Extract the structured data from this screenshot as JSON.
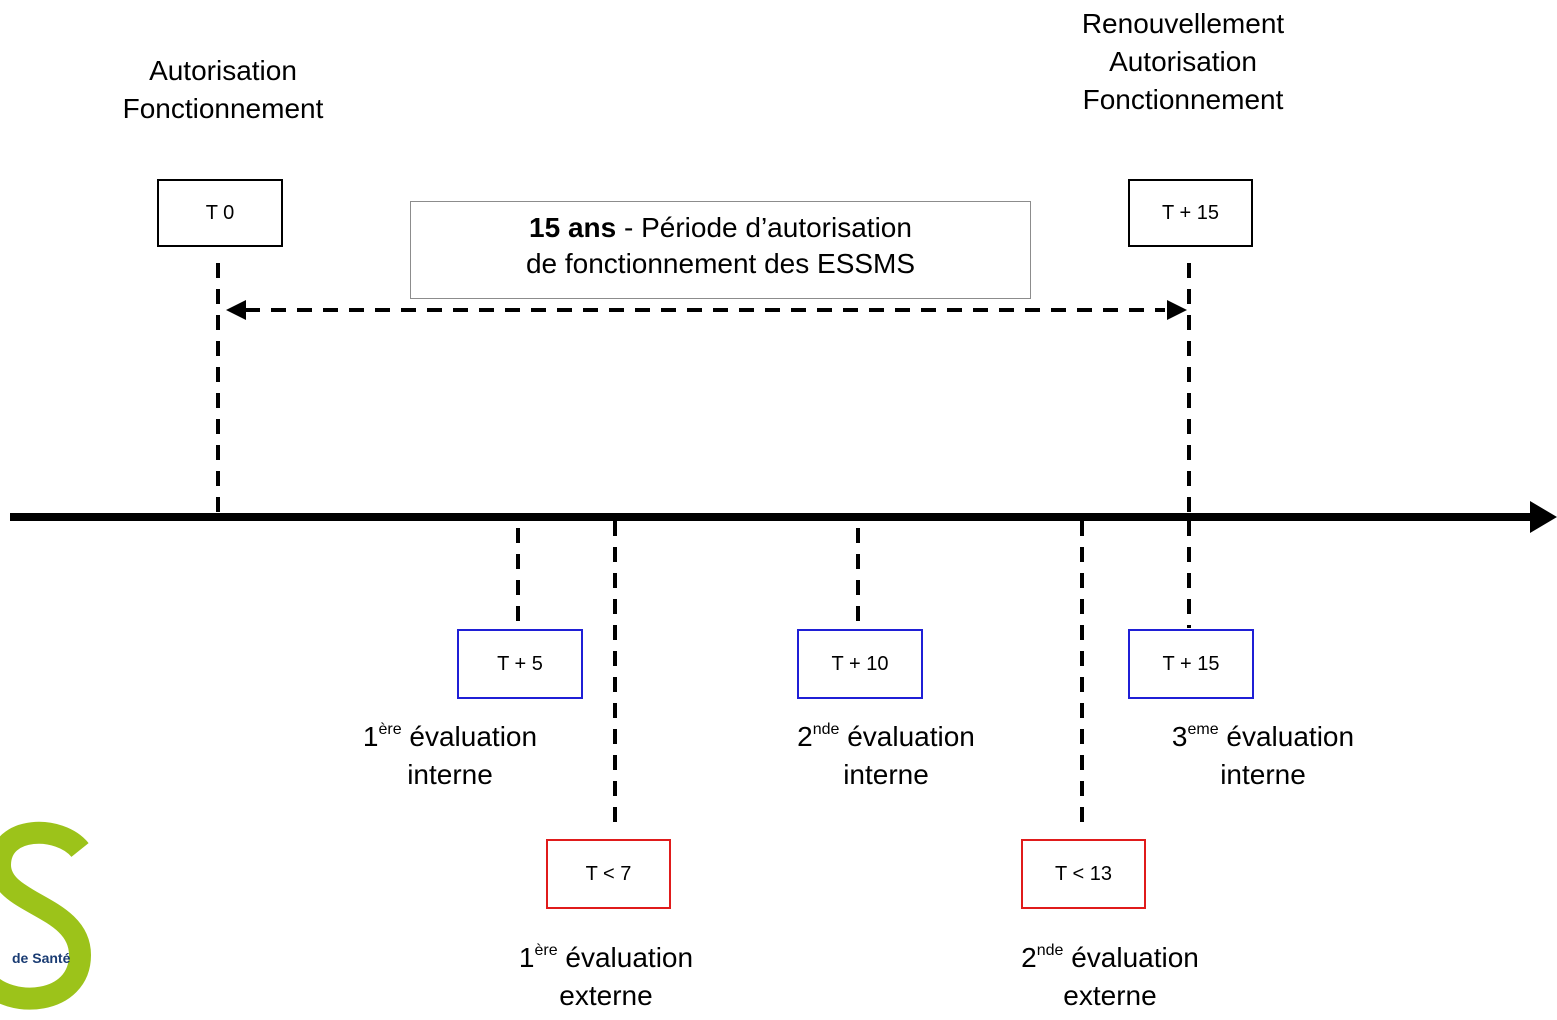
{
  "top_labels": {
    "start": [
      "Autorisation",
      "Fonctionnement"
    ],
    "end": [
      "Renouvellement",
      "Autorisation",
      "Fonctionnement"
    ]
  },
  "boxes": {
    "t0": "T 0",
    "t15_top": "T + 15",
    "t5": "T + 5",
    "t10": "T + 10",
    "t15_bottom": "T + 15",
    "t7": "T < 7",
    "t13": "T < 13"
  },
  "period": {
    "bold": "15 ans",
    "rest": " - Période d’autorisation",
    "line2": "de fonctionnement des ESSMS"
  },
  "evaluations": {
    "first_internal": {
      "num": "1",
      "sup": "ère",
      "word": " évaluation",
      "type": "interne"
    },
    "second_internal": {
      "num": "2",
      "sup": "nde",
      "word": " évaluation",
      "type": "interne"
    },
    "third_internal": {
      "num": "3",
      "sup": "eme",
      "word": " évaluation",
      "type": "interne"
    },
    "first_external": {
      "num": "1",
      "sup": "ère",
      "word": " évaluation",
      "type": "externe"
    },
    "second_external": {
      "num": "2",
      "sup": "nde",
      "word": " évaluation",
      "type": "externe"
    }
  },
  "logo": {
    "text_de": "de ",
    "text_s": "Santé"
  },
  "colors": {
    "internal_border": "#1f1fd6",
    "external_border": "#e01b1b",
    "logo_green": "#9cc31a"
  }
}
